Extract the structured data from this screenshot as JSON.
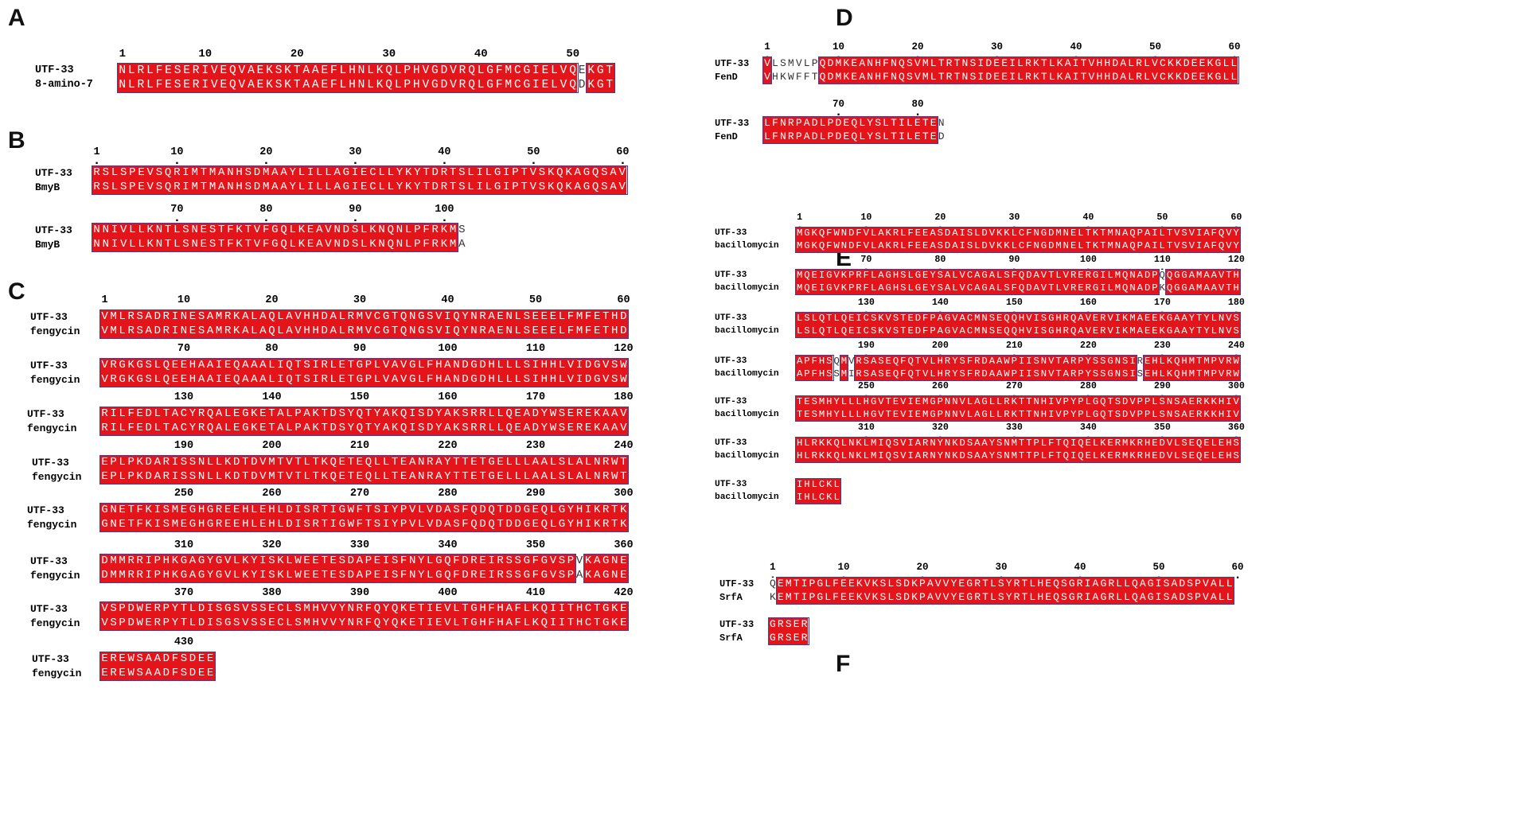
{
  "panels": [
    {
      "label": "A",
      "blocks": [
        {
          "ticks": [
            "1",
            "10",
            "20",
            "30",
            "40",
            "50"
          ],
          "names": [
            "UTF-33",
            "8-amino-7"
          ],
          "seq1": "NLRLFESERIVEQVAEKSKTAAEFLHNLKQLPHVGDVRQLGFMCGIELVQEKGT",
          "seq2": "NLRLFESERIVEQVAEKSKTAAEFLHNLKQLPHVGDVRQLGFMCGIELVQDKGT"
        }
      ]
    },
    {
      "label": "B",
      "blocks": [
        {
          "ticks": [
            "1",
            "10",
            "20",
            "30",
            "40",
            "50",
            "60"
          ],
          "names": [
            "UTF-33",
            "BmyB"
          ],
          "seq1": "RSLSPEVSQRIMTMANHSDMAAYLILLAGIECLLYKYTDRTSLILGIPTVSKQKAGQSAV",
          "seq2": "RSLSPEVSQRIMTMANHSDMAAYLILLAGIECLLYKYTDRTSLILGIPTVSKQKAGQSAV"
        },
        {
          "ticks": [
            "70",
            "80",
            "90",
            "100"
          ],
          "names": [
            "UTF-33",
            "BmyB"
          ],
          "seq1": "NNIVLLKNTLSNESTFKTVFGQLKEAVNDSLKNQNLPFRKMS",
          "seq2": "NNIVLLKNTLSNESTFKTVFGQLKEAVNDSLKNQNLPFRKMA"
        }
      ]
    },
    {
      "label": "C",
      "blocks": [
        {
          "ticks": [
            "1",
            "10",
            "20",
            "30",
            "40",
            "50",
            "60"
          ],
          "names": [
            "UTF-33",
            "fengycin"
          ],
          "seq1": "VMLRSADRINESAMRKALAQLAVHHDALRMVCGTQNGSVIQYNRAENLSEEELFMFETHD",
          "seq2": "VMLRSADRINESAMRKALAQLAVHHDALRMVCGTQNGSVIQYNRAENLSEEELFMFETHD"
        },
        {
          "ticks": [
            "70",
            "80",
            "90",
            "100",
            "110",
            "120"
          ],
          "names": [
            "UTF-33",
            "fengycin"
          ],
          "seq1": "VRGKGSLQEEHAAIEQAAALIQTSIRLETGPLVAVGLFHANDGDHLLLSIHHLVIDGVSW",
          "seq2": "VRGKGSLQEEHAAIEQAAALIQTSIRLETGPLVAVGLFHANDGDHLLLSIHHLVIDGVSW"
        },
        {
          "ticks": [
            "130",
            "140",
            "150",
            "160",
            "170",
            "180"
          ],
          "names": [
            "UTF-33",
            "fengycin"
          ],
          "seq1": "RILFEDLTACYRQALEGKETALPAKTDSYQTYAKQISDYAKSRRLLQEADYWSEREKAAV",
          "seq2": "RILFEDLTACYRQALEGKETALPAKTDSYQTYAKQISDYAKSRRLLQEADYWSEREKAAV"
        },
        {
          "ticks": [
            "190",
            "200",
            "210",
            "220",
            "230",
            "240"
          ],
          "names": [
            "UTF-33",
            "fengycin"
          ],
          "seq1": "EPLPKDARISSNLLKDTDVMTVTLTKQETEQLLTEANRAYTTETGELLLAALSLALNRWT",
          "seq2": "EPLPKDARISSNLLKDTDVMTVTLTKQETEQLLTEANRAYTTETGELLLAALSLALNRWT"
        },
        {
          "ticks": [
            "250",
            "260",
            "270",
            "280",
            "290",
            "300"
          ],
          "names": [
            "UTF-33",
            "fengycin"
          ],
          "seq1": "GNETFKISMEGHGREEHLEHLDISRTIGWFTSIYPVLVDASFQDQTDDGEQLGYHIKRTK",
          "seq2": "GNETFKISMEGHGREEHLEHLDISRTIGWFTSIYPVLVDASFQDQTDDGEQLGYHIKRTK"
        },
        {
          "ticks": [
            "310",
            "320",
            "330",
            "340",
            "350",
            "360"
          ],
          "names": [
            "UTF-33",
            "fengycin"
          ],
          "seq1": "DMMRRIPHKGAGYGVLKYISKLWEETESDAPEISFNYLGQFDREIRSSGFGVSPVKAGNE",
          "seq2": "DMMRRIPHKGAGYGVLKYISKLWEETESDAPEISFNYLGQFDREIRSSGFGVSPAKAGNE"
        },
        {
          "ticks": [
            "370",
            "380",
            "390",
            "400",
            "410",
            "420"
          ],
          "names": [
            "UTF-33",
            "fengycin"
          ],
          "seq1": "VSPDWERPYTLDISGSVSSECLSMHVVYNRFQYQKETIEVLTGHFHAFLKQIITHCTGKE",
          "seq2": "VSPDWERPYTLDISGSVSSECLSMHVVYNRFQYQKETIEVLTGHFHAFLKQIITHCTGKE"
        },
        {
          "ticks": [
            "430"
          ],
          "names": [
            "UTF-33",
            "fengycin"
          ],
          "seq1": "EREWSAADFSDEE",
          "seq2": "EREWSAADFSDEE"
        }
      ]
    },
    {
      "label": "D",
      "blocks": [
        {
          "ticks": [
            "1",
            "10",
            "20",
            "30",
            "40",
            "50",
            "60"
          ],
          "names": [
            "UTF-33",
            "FenD"
          ],
          "seq1": "VLSMVLPQDMKEANHFNQSVMLTRTNSIDEEILRKTLKAITVHHDALRLVCKKDEEKGLL",
          "seq2": "VHKWFFTQDMKEANHFNQSVMLTRTNSIDEEILRKTLKAITVHHDALRLVCKKDEEKGLL"
        },
        {
          "ticks": [
            "70",
            "80"
          ],
          "names": [
            "UTF-33",
            "FenD"
          ],
          "seq1": "LFNRPADLPDEQLYSLTILETEN",
          "seq2": "LFNRPADLPDEQLYSLTILETED"
        }
      ]
    },
    {
      "label": "E",
      "blocks": [
        {
          "ticks": [
            "1",
            "10",
            "20",
            "30",
            "40",
            "50",
            "60"
          ],
          "names": [
            "UTF-33",
            "bacillomycin"
          ],
          "seq1": "MGKQFWNDFVLAKRLFEEASDAISLDVKKLCFNGDMNELTKTMNAQPAILTVSVIAFQVY",
          "seq2": "MGKQFWNDFVLAKRLFEEASDAISLDVKKLCFNGDMNELTKTMNAQPAILTVSVIAFQVY"
        },
        {
          "ticks": [
            "70",
            "80",
            "90",
            "100",
            "110",
            "120"
          ],
          "names": [
            "UTF-33",
            "bacillomycin"
          ],
          "seq1": "MQEIGVKPRFLAGHSLGEYSALVCAGALSFQDAVTLVRERGILMQNADPQQGGAMAAVTH",
          "seq2": "MQEIGVKPRFLAGHSLGEYSALVCAGALSFQDAVTLVRERGILMQNADPKQGGAMAAVTH"
        },
        {
          "ticks": [
            "130",
            "140",
            "150",
            "160",
            "170",
            "180"
          ],
          "names": [
            "UTF-33",
            "bacillomycin"
          ],
          "seq1": "LSLQTLQEICSKVSTEDFPAGVACMNSEQQHVISGHRQAVERVIKMAEEKGAAYTYLNVS",
          "seq2": "LSLQTLQEICSKVSTEDFPAGVACMNSEQQHVISGHRQAVERVIKMAEEKGAAYTYLNVS"
        },
        {
          "ticks": [
            "190",
            "200",
            "210",
            "220",
            "230",
            "240"
          ],
          "names": [
            "UTF-33",
            "bacillomycin"
          ],
          "seq1": "APFHSQMVRSASEQFQTVLHRYSFRDAAWPIISNVTARPYSSGNSIREHLKQHMTMPVRW",
          "seq2": "APFHSSMIRSASEQFQTVLHRYSFRDAAWPIISNVTARPYSSGNSISEHLKQHMTMPVRW"
        },
        {
          "ticks": [
            "250",
            "260",
            "270",
            "280",
            "290",
            "300"
          ],
          "names": [
            "UTF-33",
            "bacillomycin"
          ],
          "seq1": "TESMHYLLLHGVTEVIEMGPNNVLAGLLRKTTNHIVPYPLGQTSDVPPLSNSAERKKHIV",
          "seq2": "TESMHYLLLHGVTEVIEMGPNNVLAGLLRKTTNHIVPYPLGQTSDVPPLSNSAERKKHIV"
        },
        {
          "ticks": [
            "310",
            "320",
            "330",
            "340",
            "350",
            "360"
          ],
          "names": [
            "UTF-33",
            "bacillomycin"
          ],
          "seq1": "HLRKKQLNKLMIQSVIARNYNKDSAAYSNMTTPLFTQIQELKERMKRHEDVLSEQELEHS",
          "seq2": "HLRKKQLNKLMIQSVIARNYNKDSAAYSNMTTPLFTQIQELKERMKRHEDVLSEQELEHS"
        },
        {
          "ticks": [],
          "names": [
            "UTF-33",
            "bacillomycin"
          ],
          "seq1": "IHLCKL",
          "seq2": "IHLCKL"
        }
      ]
    },
    {
      "label": "F",
      "blocks": [
        {
          "ticks": [
            "1",
            "10",
            "20",
            "30",
            "40",
            "50",
            "60"
          ],
          "names": [
            "UTF-33",
            "SrfA"
          ],
          "seq1": "QEMTIPGLFEEKVKSLSDKPAVVYEGRTLSYRTLHEQSGRIAGRLLQAGISADSPVALL",
          "seq2": "KEMTIPGLFEEKVKSLSDKPAVVYEGRTLSYRTLHEQSGRIAGRLLQAGISADSPVALL"
        },
        {
          "ticks": [],
          "names": [
            "UTF-33",
            "SrfA"
          ],
          "seq1": "GRSER",
          "seq2": "GRSER"
        }
      ]
    }
  ]
}
